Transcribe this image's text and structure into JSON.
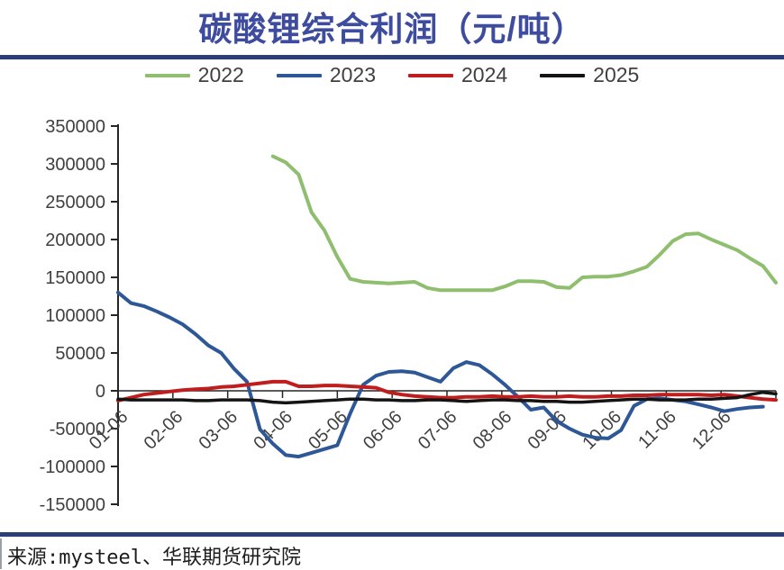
{
  "page": {
    "title": "碳酸锂综合利润（元/吨）",
    "source": "来源:mysteel、华联期货研究院",
    "title_color": "#3D4C9E",
    "divider_color": "#2B3E78"
  },
  "chart_data": {
    "type": "line",
    "title": "碳酸锂综合利润（元/吨）",
    "grid": false,
    "legend_position": "top",
    "points_per_year": 52,
    "x_tick_labels": [
      "01-06",
      "02-06",
      "03-06",
      "04-06",
      "05-06",
      "06-06",
      "07-06",
      "08-06",
      "09-06",
      "10-06",
      "11-06",
      "12-06"
    ],
    "y_axis": {
      "min": -150000,
      "max": 350000,
      "step": 50000
    },
    "y_tick_labels": [
      "350000",
      "300000",
      "250000",
      "200000",
      "150000",
      "100000",
      "50000",
      "0",
      "-50000",
      "-100000",
      "-150000"
    ],
    "axis_color": "#262626",
    "tick_label_color": "#3f3f3f",
    "series": [
      {
        "name": "2022",
        "color": "#8FBE6E",
        "values": [
          null,
          null,
          null,
          null,
          null,
          null,
          null,
          null,
          null,
          null,
          null,
          null,
          310000,
          302000,
          286000,
          236000,
          212000,
          177000,
          148000,
          144000,
          143000,
          142000,
          143000,
          144000,
          136000,
          133000,
          133000,
          133000,
          133000,
          133000,
          138000,
          145000,
          145000,
          144000,
          137000,
          136000,
          150000,
          151000,
          151000,
          153000,
          158000,
          164000,
          180000,
          198000,
          207000,
          208000,
          200000,
          193000,
          186000,
          175000,
          165000,
          143000
        ]
      },
      {
        "name": "2023",
        "color": "#2D5796",
        "values": [
          130000,
          116000,
          112000,
          105000,
          97000,
          88000,
          75000,
          60000,
          50000,
          29000,
          12000,
          -51000,
          -70000,
          -85000,
          -87000,
          -82000,
          -77000,
          -72000,
          -30000,
          8000,
          20000,
          25000,
          26000,
          24000,
          18000,
          12000,
          30000,
          38000,
          34000,
          22000,
          8000,
          -8000,
          -25000,
          -22000,
          -40000,
          -50000,
          -58000,
          -62000,
          -63000,
          -52000,
          -20000,
          -11000,
          -10000,
          -12000,
          -14000,
          -18000,
          -22000,
          -27000,
          -24000,
          -22000,
          -21000,
          null
        ]
      },
      {
        "name": "2024",
        "color": "#C01E1E",
        "values": [
          -13000,
          -9000,
          -5000,
          -3000,
          -1000,
          1000,
          2000,
          3000,
          5000,
          6000,
          8000,
          10000,
          12000,
          12000,
          6000,
          6000,
          7000,
          7000,
          6000,
          5000,
          4000,
          -2000,
          -5000,
          -7000,
          -8000,
          -9000,
          -9000,
          -8000,
          -8000,
          -7000,
          -8000,
          -8000,
          -7000,
          -8000,
          -8000,
          -7000,
          -8000,
          -8000,
          -7000,
          -7000,
          -6000,
          -6000,
          -5000,
          -5000,
          -5000,
          -5000,
          -6000,
          -5000,
          -7000,
          -9000,
          -11000,
          -12000
        ]
      },
      {
        "name": "2025",
        "color": "#141414",
        "values": [
          -11000,
          -12000,
          -12000,
          -12000,
          -12000,
          -12000,
          -13000,
          -13000,
          -12000,
          -12000,
          -12000,
          -13000,
          -15000,
          -16000,
          -15000,
          -14000,
          -13000,
          -12000,
          -11000,
          -11000,
          -12000,
          -12000,
          -13000,
          -13000,
          -12000,
          -12000,
          -13000,
          -14000,
          -13000,
          -12000,
          -12000,
          -13000,
          -13000,
          -14000,
          -14000,
          -15000,
          -15000,
          -14000,
          -13000,
          -12000,
          -11000,
          -11000,
          -12000,
          -12000,
          -12000,
          -11000,
          -11000,
          -10000,
          -9000,
          -5000,
          -2000,
          -4000
        ]
      }
    ]
  }
}
